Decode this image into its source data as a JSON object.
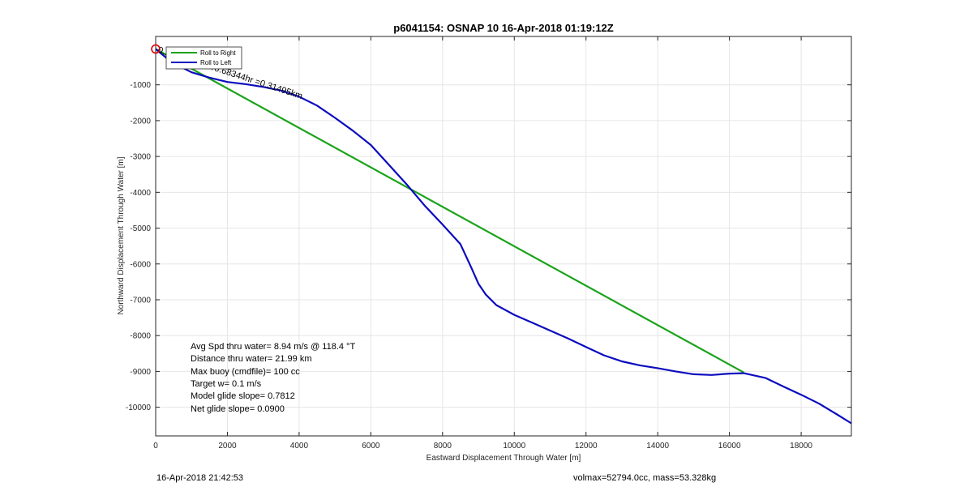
{
  "chart_data": {
    "type": "line",
    "title": "p6041154: OSNAP 10 16-Apr-2018 01:19:12Z",
    "xlabel": "Eastward Displacement Through Water [m]",
    "ylabel": "Northward Displacement Through Water [m]",
    "xlim": [
      0,
      19400
    ],
    "ylim": [
      -10800,
      350
    ],
    "xticks": [
      0,
      2000,
      4000,
      6000,
      8000,
      10000,
      12000,
      14000,
      16000,
      18000
    ],
    "yticks": [
      -10000,
      -9000,
      -8000,
      -7000,
      -6000,
      -5000,
      -4000,
      -3000,
      -2000,
      -1000
    ],
    "grid": true,
    "legend_position": "top-left",
    "series": [
      {
        "name": "Roll to Right",
        "color": "#1aa31a",
        "x": [
          0,
          16400
        ],
        "y": [
          0,
          -9030
        ]
      },
      {
        "name": "Roll to Left",
        "color": "#0b0bbf",
        "x": [
          0,
          300,
          600,
          1000,
          1500,
          2000,
          2500,
          3000,
          3500,
          4000,
          4500,
          5000,
          5500,
          6000,
          6500,
          7000,
          7500,
          8000,
          8500,
          8800,
          9000,
          9200,
          9500,
          10000,
          10500,
          11000,
          11500,
          12000,
          12500,
          13000,
          13500,
          14000,
          14500,
          15000,
          15500,
          16000,
          16400,
          17000,
          17500,
          18000,
          18500,
          19000,
          19400
        ],
        "y": [
          0,
          -250,
          -450,
          -650,
          -800,
          -920,
          -980,
          -1060,
          -1160,
          -1330,
          -1580,
          -1920,
          -2280,
          -2680,
          -3230,
          -3780,
          -4370,
          -4900,
          -5450,
          -6100,
          -6550,
          -6850,
          -7150,
          -7420,
          -7640,
          -7860,
          -8080,
          -8320,
          -8550,
          -8720,
          -8830,
          -8910,
          -9000,
          -9080,
          -9100,
          -9060,
          -9050,
          -9180,
          -9420,
          -9650,
          -9900,
          -10200,
          -10450
        ]
      }
    ],
    "annotations": {
      "start_marker_color": "#dd0000",
      "current_label": "0.12863m/s for0.68344hr =0.31495km",
      "current_angle_deg": 18
    },
    "stats": [
      "Avg Spd thru water=  8.94 m/s @ 118.4 °T",
      "Distance thru water= 21.99 km",
      "Max buoy (cmdfile)= 100 cc",
      "Target w= 0.1 m/s",
      "Model glide slope= 0.7812",
      "Net glide slope= 0.0900"
    ]
  },
  "footer": {
    "timestamp": "16-Apr-2018 21:42:53",
    "volmax": "volmax=52794.0cc, mass=53.328kg"
  }
}
